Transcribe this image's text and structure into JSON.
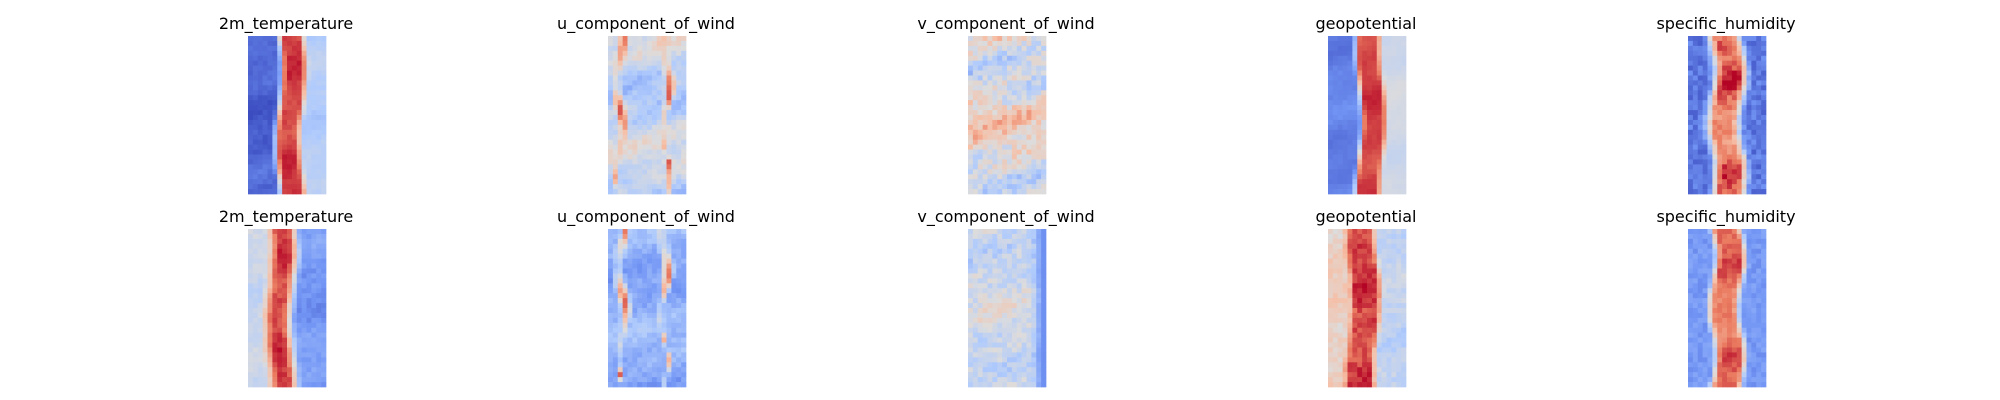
{
  "chart_data": {
    "type": "heatmap",
    "colormap": "coolwarm",
    "grid": false,
    "axes_visible": false,
    "colormap_stops": [
      "#3b4cc0",
      "#7396f5",
      "#b0cbfc",
      "#dddcdc",
      "#f6bfa6",
      "#ea7b60",
      "#b40426"
    ],
    "rows": [
      {
        "panels": [
          {
            "title": "2m_temperature",
            "pattern": {
              "kind": "band",
              "center": 0.55,
              "width": 0.3,
              "edge": 0.06,
              "left_edge_value": 0.05,
              "right_edge_value": 0.35,
              "noise": 0.06,
              "fine": 0.02
            }
          },
          {
            "title": "u_component_of_wind",
            "pattern": {
              "kind": "stripes",
              "base": 0.4,
              "noise": 0.18,
              "streaks": [
                0.15,
                0.75
              ],
              "streak_value": 0.92,
              "fine": 0.05
            }
          },
          {
            "title": "v_component_of_wind",
            "pattern": {
              "kind": "speckle",
              "base": 0.52,
              "noise": 0.22,
              "fine": 0.1
            }
          },
          {
            "title": "geopotential",
            "pattern": {
              "kind": "band",
              "center": 0.55,
              "width": 0.3,
              "edge": 0.05,
              "left_edge_value": 0.12,
              "right_edge_value": 0.45,
              "noise": 0.05,
              "fine": 0.01
            }
          },
          {
            "title": "specific_humidity",
            "pattern": {
              "kind": "core",
              "center": 0.5,
              "width": 0.18,
              "edge": 0.2,
              "outside": 0.1,
              "noise": 0.15,
              "fine": 0.06
            }
          }
        ]
      },
      {
        "panels": [
          {
            "title": "2m_temperature",
            "pattern": {
              "kind": "band",
              "center": 0.42,
              "width": 0.3,
              "edge": 0.1,
              "left_edge_value": 0.42,
              "right_edge_value": 0.18,
              "noise": 0.06,
              "fine": 0.03
            }
          },
          {
            "title": "u_component_of_wind",
            "pattern": {
              "kind": "stripes",
              "base": 0.25,
              "noise": 0.1,
              "streaks": [
                0.18,
                0.72
              ],
              "streak_value": 0.88,
              "fine": 0.04
            }
          },
          {
            "title": "v_component_of_wind",
            "pattern": {
              "kind": "speckle",
              "base": 0.44,
              "noise": 0.1,
              "fine": 0.08,
              "right_edge_value": 0.15
            }
          },
          {
            "title": "geopotential",
            "pattern": {
              "kind": "band",
              "center": 0.45,
              "width": 0.36,
              "edge": 0.06,
              "left_edge_value": 0.58,
              "right_edge_value": 0.4,
              "noise": 0.06,
              "fine": 0.05
            }
          },
          {
            "title": "specific_humidity",
            "pattern": {
              "kind": "core",
              "center": 0.5,
              "width": 0.22,
              "edge": 0.14,
              "outside": 0.18,
              "noise": 0.1,
              "fine": 0.04
            }
          }
        ]
      }
    ]
  }
}
